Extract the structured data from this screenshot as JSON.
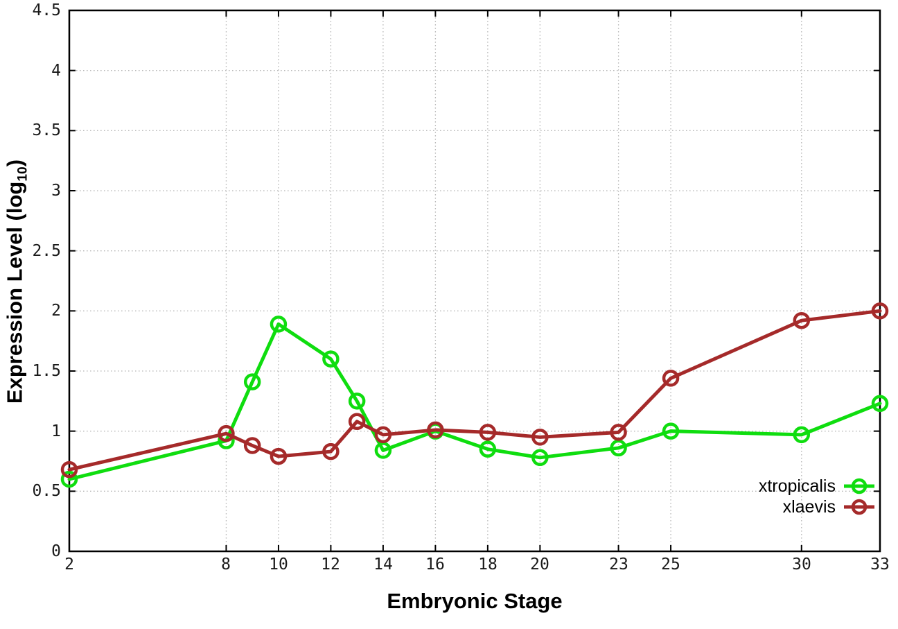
{
  "chart_data": {
    "type": "line",
    "title": "",
    "xlabel": "Embryonic Stage",
    "ylabel": "Expression Level (log10)",
    "ylabel_prefix": "Expression Level (log",
    "ylabel_sub": "10",
    "ylabel_suffix": ")",
    "x": [
      2,
      8,
      9,
      10,
      12,
      13,
      14,
      16,
      18,
      20,
      23,
      25,
      30,
      33
    ],
    "series": [
      {
        "name": "xtropicalis",
        "color": "#0fdd0f",
        "marker": "open-circle",
        "values": [
          0.6,
          0.92,
          1.41,
          1.89,
          1.6,
          1.25,
          0.84,
          1.0,
          0.85,
          0.78,
          0.86,
          1.0,
          0.97,
          1.23
        ]
      },
      {
        "name": "xlaevis",
        "color": "#a52a2a",
        "marker": "open-circle",
        "values": [
          0.68,
          0.98,
          0.88,
          0.79,
          0.83,
          1.08,
          0.97,
          1.01,
          0.99,
          0.95,
          0.99,
          1.44,
          1.92,
          2.0
        ]
      }
    ],
    "xlim": [
      2,
      33
    ],
    "ylim": [
      0,
      4.5
    ],
    "xticks": {
      "values": [
        2,
        8,
        10,
        12,
        14,
        16,
        18,
        20,
        23,
        25,
        30,
        33
      ],
      "labels": [
        "2",
        "8",
        "10",
        "12",
        "14",
        "16",
        "18",
        "20",
        "23",
        "25",
        "30",
        "33"
      ]
    },
    "yticks": {
      "values": [
        0,
        0.5,
        1,
        1.5,
        2,
        2.5,
        3,
        3.5,
        4,
        4.5
      ],
      "labels": [
        "0",
        "0.5",
        "1",
        "1.5",
        "2",
        "2.5",
        "3",
        "3.5",
        "4",
        "4.5"
      ]
    },
    "grid": true,
    "legend_position": "bottom-right",
    "colors": {
      "background": "#ffffff",
      "grid": "#b8b8b8",
      "border": "#000000",
      "tick_text": "#1a1a1a"
    }
  }
}
